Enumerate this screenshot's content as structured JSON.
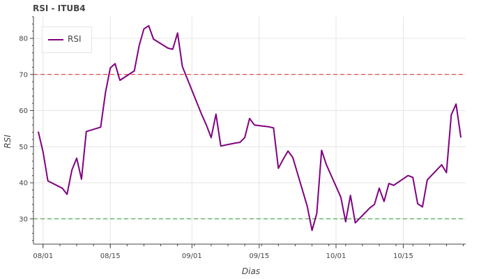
{
  "chart_data": {
    "type": "line",
    "title": "RSI - ITUB4",
    "xlabel": "Dias",
    "ylabel": "RSI",
    "x_ticks": [
      "08/01",
      "08/15",
      "09/01",
      "09/15",
      "10/01",
      "10/15"
    ],
    "y_ticks": [
      30,
      40,
      50,
      60,
      70,
      80
    ],
    "ylim": [
      23,
      86
    ],
    "xlim": [
      "2019-07-30",
      "2019-10-28"
    ],
    "grid": true,
    "legend_position": "top-left",
    "reference_lines": [
      {
        "y": 70,
        "color": "#d62728",
        "style": "dashed"
      },
      {
        "y": 30,
        "color": "#2ca02c",
        "style": "dashed"
      }
    ],
    "series": [
      {
        "name": "RSI",
        "color": "#800080",
        "points": [
          [
            "2019-07-31",
            54.2
          ],
          [
            "2019-08-01",
            48.5
          ],
          [
            "2019-08-02",
            40.5
          ],
          [
            "2019-08-05",
            38.5
          ],
          [
            "2019-08-06",
            36.8
          ],
          [
            "2019-08-07",
            43.5
          ],
          [
            "2019-08-08",
            46.8
          ],
          [
            "2019-08-09",
            41.0
          ],
          [
            "2019-08-10",
            54.2
          ],
          [
            "2019-08-13",
            55.4
          ],
          [
            "2019-08-14",
            65.0
          ],
          [
            "2019-08-15",
            71.8
          ],
          [
            "2019-08-16",
            73.0
          ],
          [
            "2019-08-17",
            68.4
          ],
          [
            "2019-08-20",
            71.0
          ],
          [
            "2019-08-21",
            78.0
          ],
          [
            "2019-08-22",
            82.6
          ],
          [
            "2019-08-23",
            83.5
          ],
          [
            "2019-08-24",
            79.8
          ],
          [
            "2019-08-27",
            77.3
          ],
          [
            "2019-08-28",
            77.0
          ],
          [
            "2019-08-29",
            81.5
          ],
          [
            "2019-08-30",
            72.2
          ],
          [
            "2019-09-03",
            59.0
          ],
          [
            "2019-09-04",
            56.0
          ],
          [
            "2019-09-05",
            52.5
          ],
          [
            "2019-09-06",
            59.0
          ],
          [
            "2019-09-07",
            50.2
          ],
          [
            "2019-09-10",
            51.0
          ],
          [
            "2019-09-11",
            51.2
          ],
          [
            "2019-09-12",
            52.5
          ],
          [
            "2019-09-13",
            57.8
          ],
          [
            "2019-09-14",
            56.0
          ],
          [
            "2019-09-17",
            55.5
          ],
          [
            "2019-09-18",
            55.2
          ],
          [
            "2019-09-19",
            44.0
          ],
          [
            "2019-09-20",
            46.5
          ],
          [
            "2019-09-21",
            48.8
          ],
          [
            "2019-09-22",
            47.0
          ],
          [
            "2019-09-25",
            33.5
          ],
          [
            "2019-09-26",
            26.8
          ],
          [
            "2019-09-27",
            31.5
          ],
          [
            "2019-09-28",
            49.0
          ],
          [
            "2019-09-29",
            45.0
          ],
          [
            "2019-09-30",
            42.0
          ],
          [
            "2019-10-02",
            36.0
          ],
          [
            "2019-10-03",
            29.2
          ],
          [
            "2019-10-04",
            36.5
          ],
          [
            "2019-10-05",
            28.9
          ],
          [
            "2019-10-08",
            33.0
          ],
          [
            "2019-10-09",
            34.0
          ],
          [
            "2019-10-10",
            38.5
          ],
          [
            "2019-10-11",
            34.8
          ],
          [
            "2019-10-12",
            39.8
          ],
          [
            "2019-10-13",
            39.3
          ],
          [
            "2019-10-16",
            42.0
          ],
          [
            "2019-10-17",
            41.5
          ],
          [
            "2019-10-18",
            34.2
          ],
          [
            "2019-10-19",
            33.3
          ],
          [
            "2019-10-20",
            40.8
          ],
          [
            "2019-10-23",
            45.0
          ],
          [
            "2019-10-24",
            42.8
          ],
          [
            "2019-10-25",
            58.8
          ],
          [
            "2019-10-26",
            61.8
          ],
          [
            "2019-10-27",
            52.5
          ]
        ]
      }
    ]
  }
}
